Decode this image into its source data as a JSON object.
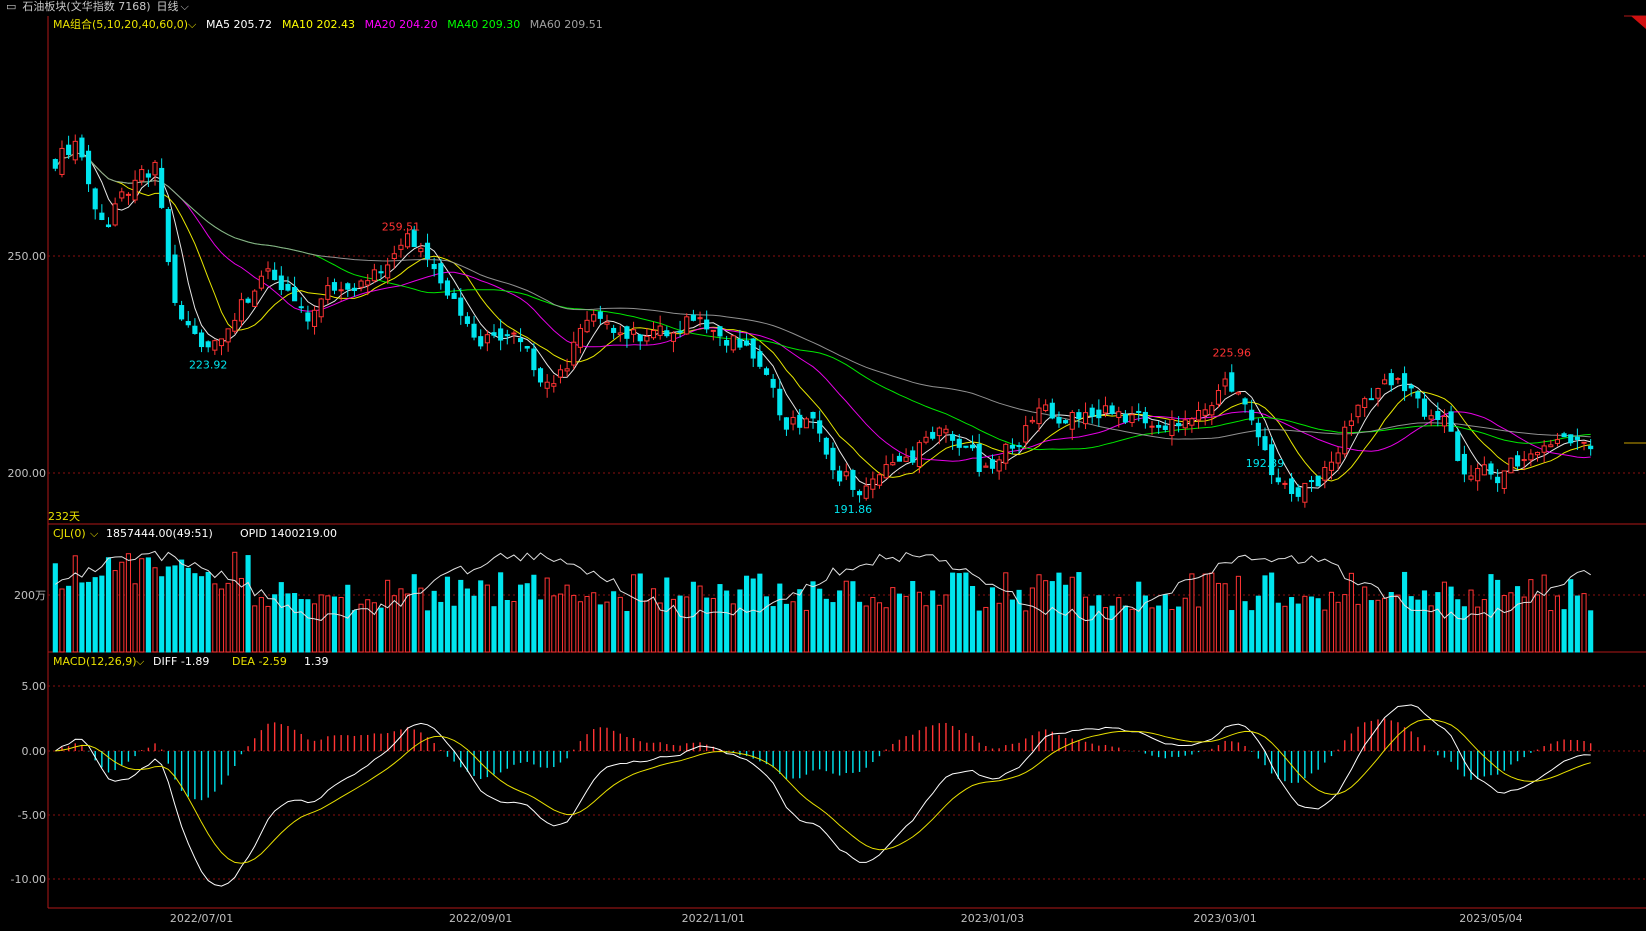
{
  "header": {
    "symbol": "石油板块(文华指数 7168)",
    "period": "日线"
  },
  "chart_data": {
    "type": "candlestick",
    "x_labels": [
      "2022/07/01",
      "2022/09/01",
      "2022/11/01",
      "2023/01/03",
      "2023/03/01",
      "2023/05/04"
    ],
    "x_label_index": [
      22,
      64,
      99,
      141,
      176,
      216
    ],
    "bar_count": 232,
    "bar_count_label": "232天",
    "price_panel": {
      "legend_title": "MA组合(5,10,20,40,60,0)",
      "ma_values": [
        {
          "name": "MA5",
          "value": "205.72",
          "color": "#ffffff"
        },
        {
          "name": "MA10",
          "value": "202.43",
          "color": "#ffff00"
        },
        {
          "name": "MA20",
          "value": "204.20",
          "color": "#ff00ff"
        },
        {
          "name": "MA40",
          "value": "209.30",
          "color": "#00ff00"
        },
        {
          "name": "MA60",
          "value": "209.51",
          "color": "#a0a0a0"
        }
      ],
      "y_ticks": [
        "250.00",
        "200.00"
      ],
      "annotations": [
        {
          "text": "259.51",
          "index": 52,
          "color": "#ff3333"
        },
        {
          "text": "223.92",
          "index": 23,
          "color": "#00e5ee"
        },
        {
          "text": "191.86",
          "index": 120,
          "color": "#00e5ee"
        },
        {
          "text": "225.96",
          "index": 177,
          "color": "#ff3333"
        },
        {
          "text": "192.39",
          "index": 182,
          "color": "#00e5ee"
        }
      ],
      "waypoints": [
        [
          0,
          272
        ],
        [
          3,
          276
        ],
        [
          6,
          262
        ],
        [
          8,
          258
        ],
        [
          12,
          268
        ],
        [
          15,
          270
        ],
        [
          18,
          240
        ],
        [
          22,
          228
        ],
        [
          27,
          236
        ],
        [
          32,
          248
        ],
        [
          38,
          234
        ],
        [
          42,
          244
        ],
        [
          47,
          244
        ],
        [
          50,
          249
        ],
        [
          53,
          255
        ],
        [
          56,
          250
        ],
        [
          60,
          240
        ],
        [
          63,
          230
        ],
        [
          70,
          232
        ],
        [
          73,
          222
        ],
        [
          76,
          222
        ],
        [
          78,
          230
        ],
        [
          81,
          236
        ],
        [
          84,
          232
        ],
        [
          88,
          232
        ],
        [
          94,
          234
        ],
        [
          97,
          234
        ],
        [
          100,
          232
        ],
        [
          103,
          230
        ],
        [
          106,
          224
        ],
        [
          110,
          212
        ],
        [
          114,
          211
        ],
        [
          118,
          200
        ],
        [
          121,
          196
        ],
        [
          125,
          200
        ],
        [
          129,
          204
        ],
        [
          134,
          210
        ],
        [
          137,
          206
        ],
        [
          140,
          200
        ],
        [
          145,
          208
        ],
        [
          148,
          216
        ],
        [
          152,
          212
        ],
        [
          156,
          214
        ],
        [
          160,
          214
        ],
        [
          164,
          212
        ],
        [
          168,
          212
        ],
        [
          173,
          214
        ],
        [
          176,
          220
        ],
        [
          178,
          218
        ],
        [
          181,
          210
        ],
        [
          184,
          196
        ],
        [
          188,
          196
        ],
        [
          192,
          202
        ],
        [
          196,
          216
        ],
        [
          200,
          221
        ],
        [
          203,
          220
        ],
        [
          206,
          214
        ],
        [
          209,
          212
        ],
        [
          211,
          204
        ],
        [
          213,
          198
        ],
        [
          215,
          201
        ],
        [
          217,
          198
        ],
        [
          219,
          202
        ],
        [
          222,
          206
        ],
        [
          224,
          205
        ],
        [
          226,
          206
        ],
        [
          229,
          208
        ],
        [
          231,
          205
        ]
      ]
    },
    "volume_panel": {
      "legend_title": "CJL(0)",
      "value": "1857444.00(49:51)",
      "opid": "OPID 1400219.00",
      "y_tick": "200万"
    },
    "macd_panel": {
      "legend_title": "MACD(12,26,9)",
      "diff": "DIFF -1.89",
      "dea": "DEA -2.59",
      "macd": "1.39",
      "y_ticks": [
        "5.00",
        "0.00",
        "-5.00",
        "-10.00"
      ]
    },
    "colors": {
      "up": "#ff3333",
      "down": "#00e5ee",
      "grid": "#8a1010",
      "axis": "#b01818",
      "text": "#c0c0c0",
      "background": "#000000"
    }
  }
}
